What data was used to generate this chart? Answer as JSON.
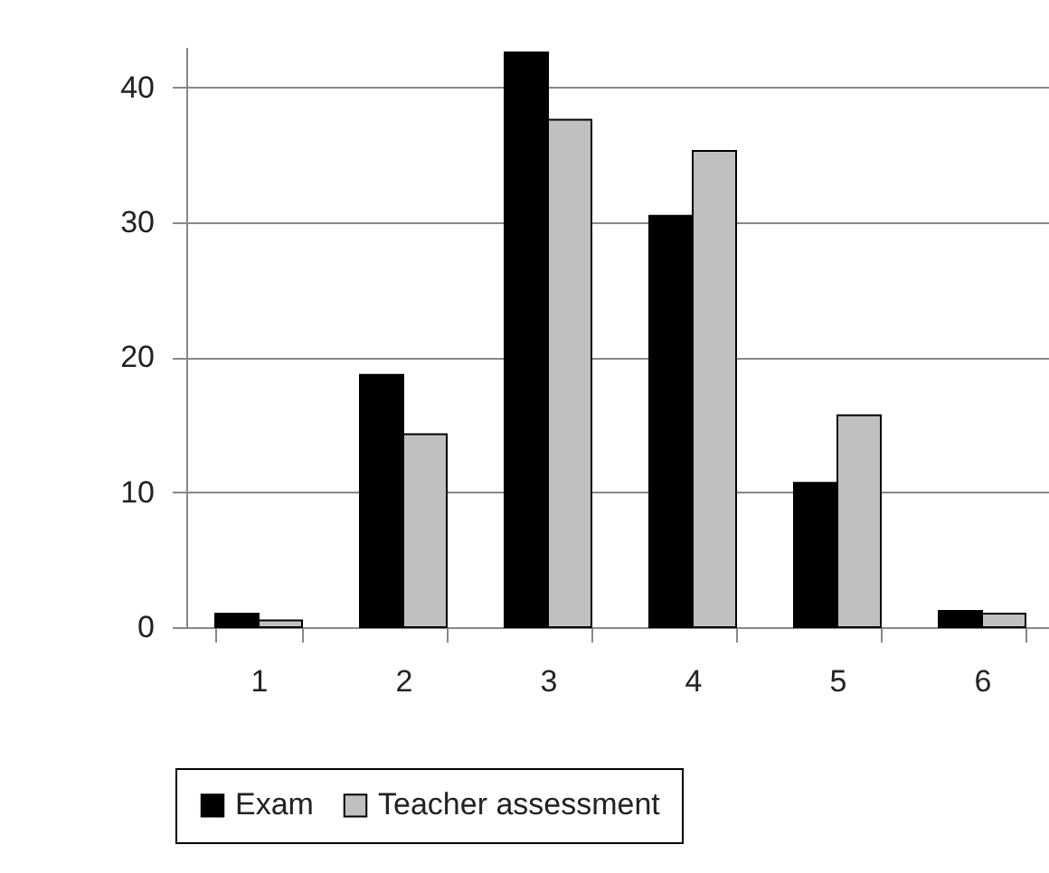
{
  "chart_data": {
    "type": "bar",
    "categories": [
      "1",
      "2",
      "3",
      "4",
      "5",
      "6"
    ],
    "series": [
      {
        "name": "Exam",
        "color": "#000000",
        "values": [
          1.0,
          18.7,
          42.6,
          30.5,
          10.7,
          1.2
        ]
      },
      {
        "name": "Teacher assessment",
        "color": "#c0c0c0",
        "values": [
          0.5,
          14.3,
          37.6,
          35.3,
          15.7,
          1.0
        ]
      }
    ],
    "ylim": [
      0,
      43
    ],
    "yticks": [
      0,
      10,
      20,
      30,
      40
    ],
    "grid": "y",
    "legend": "bottom"
  }
}
